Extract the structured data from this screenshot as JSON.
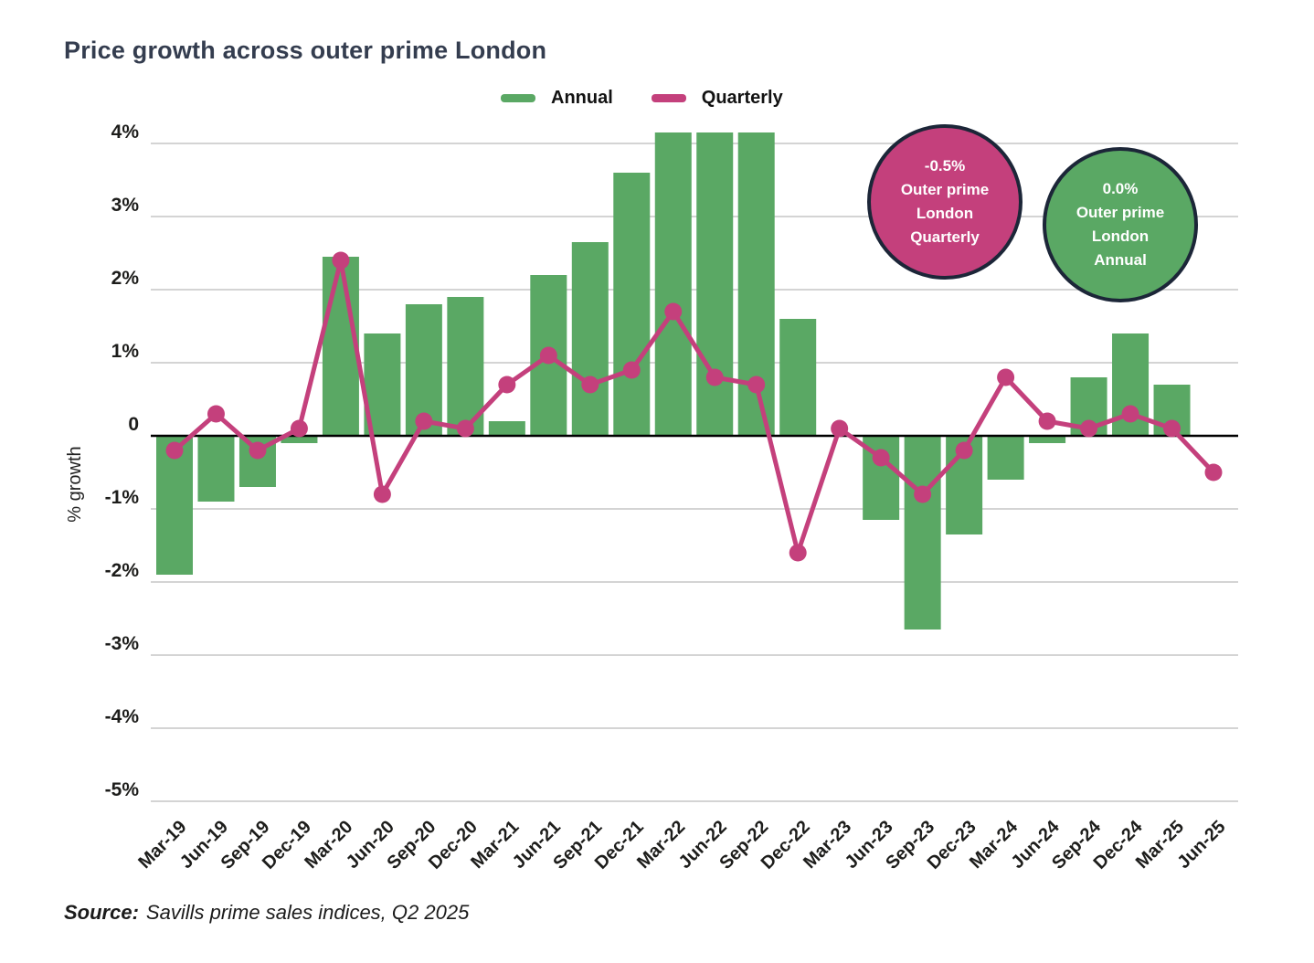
{
  "title": "Price growth across outer prime London",
  "legend": [
    {
      "label": "Annual",
      "color": "#5aa864"
    },
    {
      "label": "Quarterly",
      "color": "#c4407c"
    }
  ],
  "badges": [
    {
      "value": "-0.5%",
      "lines": [
        "Outer prime",
        "London",
        "Quarterly"
      ],
      "color": "#c4407c"
    },
    {
      "value": "0.0%",
      "lines": [
        "Outer prime",
        "London",
        "Annual"
      ],
      "color": "#5aa864"
    }
  ],
  "source": {
    "label": "Source:",
    "text": "Savills prime sales indices, Q2 2025"
  },
  "chart_data": {
    "type": "bar",
    "title": "Price growth across outer prime London",
    "xlabel": "",
    "ylabel": "% growth",
    "ylim": [
      -5,
      4
    ],
    "grid": true,
    "legend_position": "top",
    "categories": [
      "Mar-19",
      "Jun-19",
      "Sep-19",
      "Dec-19",
      "Mar-20",
      "Jun-20",
      "Sep-20",
      "Dec-20",
      "Mar-21",
      "Jun-21",
      "Sep-21",
      "Dec-21",
      "Mar-22",
      "Jun-22",
      "Sep-22",
      "Dec-22",
      "Mar-23",
      "Jun-23",
      "Sep-23",
      "Dec-23",
      "Mar-24",
      "Jun-24",
      "Sep-24",
      "Dec-24",
      "Mar-25",
      "Jun-25"
    ],
    "yticks": [
      {
        "v": 4,
        "label": "4%"
      },
      {
        "v": 3,
        "label": "3%"
      },
      {
        "v": 2,
        "label": "2%"
      },
      {
        "v": 1,
        "label": "1%"
      },
      {
        "v": 0,
        "label": "0"
      },
      {
        "v": -1,
        "label": "-1%"
      },
      {
        "v": -2,
        "label": "-2%"
      },
      {
        "v": -3,
        "label": "-3%"
      },
      {
        "v": -4,
        "label": "-4%"
      },
      {
        "v": -5,
        "label": "-5%"
      }
    ],
    "series": [
      {
        "name": "Annual",
        "type": "bar",
        "color": "#5aa864",
        "values": [
          -1.9,
          -0.9,
          -0.7,
          -0.1,
          2.45,
          1.4,
          1.8,
          1.9,
          0.2,
          2.2,
          2.65,
          3.6,
          4.15,
          4.15,
          4.15,
          1.6,
          0.0,
          -1.15,
          -2.65,
          -1.35,
          -0.6,
          -0.1,
          0.8,
          1.4,
          0.7,
          0.0
        ]
      },
      {
        "name": "Quarterly",
        "type": "line",
        "color": "#c4407c",
        "values": [
          -0.2,
          0.3,
          -0.2,
          0.1,
          2.4,
          -0.8,
          0.2,
          0.1,
          0.7,
          1.1,
          0.7,
          0.9,
          1.7,
          0.8,
          0.7,
          -1.6,
          0.1,
          -0.3,
          -0.8,
          -0.2,
          0.8,
          0.2,
          0.1,
          0.3,
          0.1,
          -0.5
        ]
      }
    ]
  }
}
